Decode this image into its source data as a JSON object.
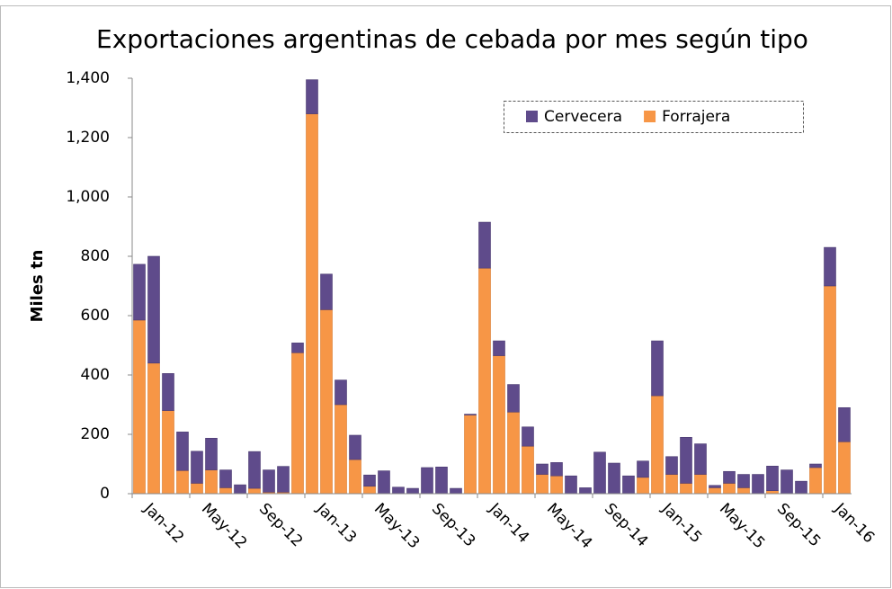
{
  "chart_data": {
    "type": "stacked_bar",
    "title": "Exportaciones argentinas de cebada por mes según tipo",
    "y_label": "Miles tn",
    "categories": [
      "Jan-12",
      null,
      null,
      null,
      "May-12",
      null,
      null,
      null,
      "Sep-12",
      null,
      null,
      null,
      "Jan-13",
      null,
      null,
      null,
      "May-13",
      null,
      null,
      null,
      "Sep-13",
      null,
      null,
      null,
      "Jan-14",
      null,
      null,
      null,
      "May-14",
      null,
      null,
      null,
      "Sep-14",
      null,
      null,
      null,
      "Jan-15",
      null,
      null,
      null,
      "May-15",
      null,
      null,
      null,
      "Sep-15",
      null,
      null,
      null,
      "Jan-16",
      null
    ],
    "series": [
      {
        "name": "Cervecera",
        "color": "#5f4b8b",
        "values": [
          188,
          360,
          125,
          130,
          108,
          107,
          60,
          30,
          124,
          75,
          87,
          33,
          115,
          120,
          83,
          82,
          38,
          77,
          22,
          18,
          88,
          90,
          18,
          3,
          155,
          50,
          93,
          65,
          35,
          45,
          60,
          20,
          140,
          103,
          60,
          55,
          185,
          60,
          155,
          103,
          8,
          40,
          45,
          65,
          83,
          80,
          42,
          12,
          130,
          115
        ]
      },
      {
        "name": "Forrajera",
        "color": "#f79646",
        "values": [
          585,
          440,
          280,
          78,
          35,
          80,
          20,
          0,
          18,
          5,
          5,
          475,
          1280,
          620,
          300,
          115,
          25,
          0,
          0,
          0,
          0,
          0,
          0,
          265,
          760,
          465,
          275,
          160,
          65,
          60,
          0,
          0,
          0,
          0,
          0,
          55,
          330,
          65,
          35,
          65,
          20,
          35,
          20,
          0,
          10,
          0,
          0,
          88,
          700,
          175
        ]
      }
    ],
    "ylim": [
      0,
      1400
    ],
    "yticks": [
      0,
      200,
      400,
      600,
      800,
      {
        "value": 1000,
        "label": "1,000"
      },
      {
        "value": 1200,
        "label": "1,200"
      },
      {
        "value": 1400,
        "label": "1,400"
      }
    ],
    "legend": "top-right"
  }
}
